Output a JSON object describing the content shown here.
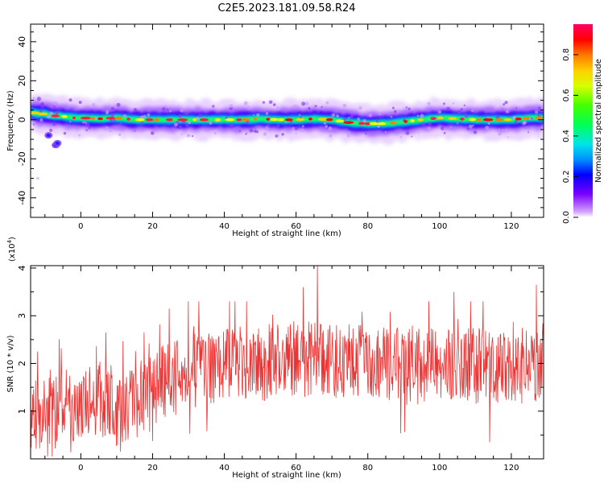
{
  "title": "C2E5.2023.181.09.58.R24",
  "chart_data": [
    {
      "type": "heatmap",
      "xlabel": "Height of straight line (km)",
      "ylabel": "Frequency (Hz)",
      "xlim": [
        -14,
        129
      ],
      "ylim": [
        -50,
        49
      ],
      "xticks": [
        0,
        20,
        40,
        60,
        80,
        100,
        120
      ],
      "yticks": [
        -40,
        -20,
        0,
        20,
        40
      ],
      "ridge": {
        "x": [
          -14,
          -12,
          -10,
          -8,
          -6,
          -4,
          -2,
          0,
          5,
          10,
          15,
          20,
          25,
          30,
          35,
          40,
          45,
          50,
          55,
          60,
          65,
          70,
          75,
          80,
          85,
          90,
          95,
          100,
          105,
          110,
          115,
          120,
          125,
          129
        ],
        "y": [
          4,
          3,
          3,
          2,
          2,
          1.5,
          1,
          1,
          0.5,
          1,
          0,
          0,
          0,
          0,
          0,
          0,
          0,
          0.5,
          0,
          0,
          0.5,
          0,
          -1.5,
          -2,
          -2,
          -1,
          0,
          1,
          0.5,
          0,
          0,
          0,
          1,
          1
        ]
      },
      "outliers": [
        {
          "x": -9,
          "y": -8
        },
        {
          "x": -7,
          "y": -13
        },
        {
          "x": -6.5,
          "y": -12
        },
        {
          "x": -12,
          "y": -30
        }
      ],
      "colorbar": {
        "label": "Normalized spectral amplitude",
        "range": [
          0,
          0.95
        ],
        "ticks": [
          0.0,
          0.2,
          0.4,
          0.6,
          0.8
        ]
      }
    },
    {
      "type": "line",
      "xlabel": "Height of straight line (km)",
      "ylabel": "SNR (10 * v/v)",
      "scale_label": "(x10",
      "scale_exp": "4",
      "scale_close": ")",
      "xlim": [
        -14,
        129
      ],
      "ylim": [
        0,
        4.05
      ],
      "xticks": [
        0,
        20,
        40,
        60,
        80,
        100,
        120
      ],
      "yticks": [
        1,
        2,
        3,
        4
      ],
      "color": "#ee3333",
      "trend": {
        "x": [
          -14,
          -10,
          -5,
          0,
          5,
          10,
          15,
          20,
          30,
          40,
          50,
          60,
          70,
          80,
          90,
          100,
          110,
          120,
          129
        ],
        "y": [
          0.9,
          0.9,
          1.1,
          1.2,
          1.3,
          0.9,
          1.2,
          1.5,
          1.8,
          2.0,
          2.0,
          2.1,
          2.05,
          2.0,
          2.0,
          2.0,
          1.95,
          1.95,
          1.9
        ]
      },
      "peaks": [
        {
          "x": 66,
          "y": 4.05
        },
        {
          "x": 62,
          "y": 3.6
        },
        {
          "x": 114,
          "y": 3.65
        },
        {
          "x": 127,
          "y": 3.65
        },
        {
          "x": 104,
          "y": 3.5
        },
        {
          "x": 43,
          "y": 3.3
        },
        {
          "x": 7,
          "y": 2.65
        },
        {
          "x": -12,
          "y": 2.25
        },
        {
          "x": -8,
          "y": 0.05
        },
        {
          "x": 114,
          "y": 0.35
        },
        {
          "x": 11,
          "y": 0.15
        }
      ]
    }
  ]
}
